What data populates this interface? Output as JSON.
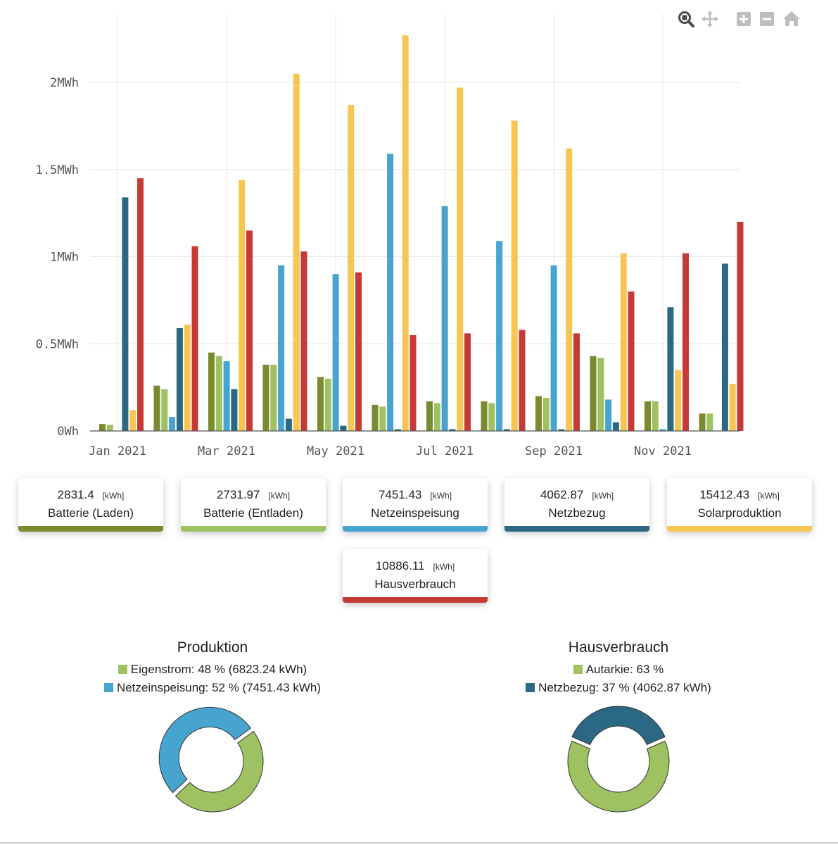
{
  "colors": {
    "batterie_laden": "#7a8a2e",
    "batterie_entladen": "#9ec161",
    "netzeinspeisung": "#46a4cf",
    "netzbezug": "#2a6884",
    "solarproduktion": "#f6c552",
    "hausverbrauch": "#c63a36"
  },
  "toolbar": {
    "zoom": "zoom-icon",
    "pan": "pan-icon",
    "zoom_in": "zoom-in-icon",
    "zoom_out": "zoom-out-icon",
    "home": "home-icon"
  },
  "chart_data": {
    "type": "bar",
    "grid": true,
    "ylim": [
      0,
      2.3
    ],
    "y_ticks": [
      0,
      0.5,
      1,
      1.5,
      2
    ],
    "y_tick_labels": [
      "0Wh",
      "0.5MWh",
      "1MWh",
      "1.5MWh",
      "2MWh"
    ],
    "x_tick_labels": [
      {
        "label": "Jan 2021",
        "month": 0
      },
      {
        "label": "Mar 2021",
        "month": 2
      },
      {
        "label": "May 2021",
        "month": 4
      },
      {
        "label": "Jul 2021",
        "month": 6
      },
      {
        "label": "Sep 2021",
        "month": 8
      },
      {
        "label": "Nov 2021",
        "month": 10
      }
    ],
    "categories": [
      "Jan 2021",
      "Feb 2021",
      "Mar 2021",
      "Apr 2021",
      "May 2021",
      "Jun 2021",
      "Jul 2021",
      "Aug 2021",
      "Sep 2021",
      "Oct 2021",
      "Nov 2021",
      "Dec 2021"
    ],
    "series": [
      {
        "name": "Batterie (Laden)",
        "color_key": "batterie_laden",
        "values": [
          0.04,
          0.26,
          0.45,
          0.38,
          0.31,
          0.15,
          0.17,
          0.17,
          0.2,
          0.43,
          0.17,
          0.1
        ]
      },
      {
        "name": "Batterie (Entladen)",
        "color_key": "batterie_entladen",
        "values": [
          0.035,
          0.24,
          0.43,
          0.38,
          0.3,
          0.14,
          0.16,
          0.16,
          0.19,
          0.42,
          0.17,
          0.1
        ]
      },
      {
        "name": "Netzeinspeisung",
        "color_key": "netzeinspeisung",
        "values": [
          0.0,
          0.08,
          0.4,
          0.95,
          0.9,
          1.59,
          1.29,
          1.09,
          0.95,
          0.18,
          0.01,
          0.0
        ]
      },
      {
        "name": "Netzbezug",
        "color_key": "netzbezug",
        "values": [
          1.34,
          0.59,
          0.24,
          0.07,
          0.03,
          0.01,
          0.01,
          0.01,
          0.01,
          0.05,
          0.71,
          0.96
        ]
      },
      {
        "name": "Solarproduktion",
        "color_key": "solarproduktion",
        "values": [
          0.12,
          0.61,
          1.44,
          2.05,
          1.87,
          2.27,
          1.97,
          1.78,
          1.62,
          1.02,
          0.35,
          0.27
        ]
      },
      {
        "name": "Hausverbrauch",
        "color_key": "hausverbrauch",
        "values": [
          1.45,
          1.06,
          1.15,
          1.03,
          0.91,
          0.55,
          0.56,
          0.58,
          0.56,
          0.8,
          1.02,
          1.2
        ]
      }
    ]
  },
  "cards": [
    {
      "value": "2831.4",
      "unit": "[kWh]",
      "label": "Batterie (Laden)",
      "color_key": "batterie_laden"
    },
    {
      "value": "2731.97",
      "unit": "[kWh]",
      "label": "Batterie (Entladen)",
      "color_key": "batterie_entladen"
    },
    {
      "value": "7451.43",
      "unit": "[kWh]",
      "label": "Netzeinspeisung",
      "color_key": "netzeinspeisung"
    },
    {
      "value": "4062.87",
      "unit": "[kWh]",
      "label": "Netzbezug",
      "color_key": "netzbezug"
    },
    {
      "value": "15412.43",
      "unit": "[kWh]",
      "label": "Solarproduktion",
      "color_key": "solarproduktion"
    },
    {
      "value": "10886.11",
      "unit": "[kWh]",
      "label": "Hausverbrauch",
      "color_key": "hausverbrauch"
    }
  ],
  "donuts": [
    {
      "title": "Produktion",
      "slices": [
        {
          "legend": "Eigenstrom: 48 % (6823.24 kWh)",
          "percent": 48,
          "color_key": "batterie_entladen"
        },
        {
          "legend": "Netzeinspeisung: 52 % (7451.43 kWh)",
          "percent": 52,
          "color_key": "netzeinspeisung"
        }
      ]
    },
    {
      "title": "Hausverbrauch",
      "slices": [
        {
          "legend": "Autarkie: 63 %",
          "percent": 63,
          "color_key": "batterie_entladen"
        },
        {
          "legend": "Netzbezug: 37 % (4062.87 kWh)",
          "percent": 37,
          "color_key": "netzbezug"
        }
      ]
    }
  ]
}
